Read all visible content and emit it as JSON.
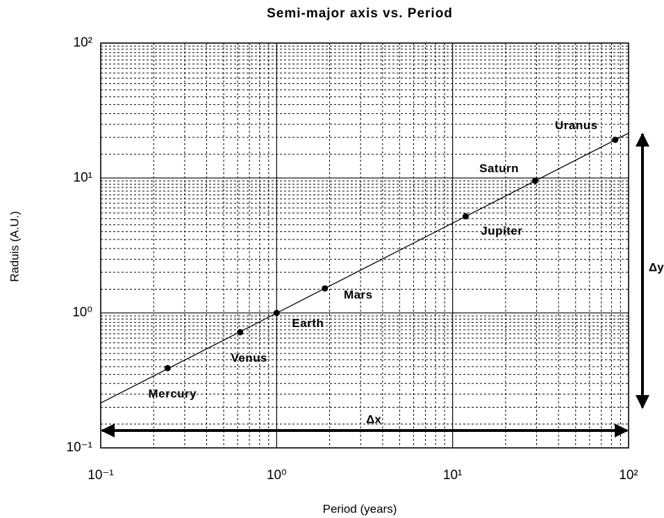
{
  "chart_data": {
    "type": "scatter",
    "title": "Semi-major axis vs. Period",
    "xlabel": "Period (years)",
    "ylabel": "Raduis (A.U.)",
    "xscale": "log",
    "yscale": "log",
    "xlim": [
      0.1,
      100
    ],
    "ylim": [
      0.1,
      100
    ],
    "xticks": [
      {
        "value": 0.1,
        "label": "10⁻¹"
      },
      {
        "value": 1,
        "label": "10⁰"
      },
      {
        "value": 10,
        "label": "10¹"
      },
      {
        "value": 100,
        "label": "10²"
      }
    ],
    "yticks": [
      {
        "value": 0.1,
        "label": "10⁻¹"
      },
      {
        "value": 1,
        "label": "10⁰"
      },
      {
        "value": 10,
        "label": "10¹"
      },
      {
        "value": 100,
        "label": "10²"
      }
    ],
    "grid": true,
    "minor_grid": true,
    "color": "#000000",
    "labels": [
      "Mercury",
      "Venus",
      "Earth",
      "Mars",
      "Jupiter",
      "Saturn",
      "Uranus"
    ],
    "x": [
      0.24,
      0.62,
      1,
      1.88,
      11.86,
      29.46,
      84
    ],
    "y": [
      0.39,
      0.72,
      1,
      1.52,
      5.2,
      9.54,
      19.2
    ],
    "fit": {
      "x": [
        0.1,
        100
      ],
      "y": [
        0.215,
        21.5
      ]
    },
    "annotations": [
      "Δx",
      "Δy"
    ]
  }
}
